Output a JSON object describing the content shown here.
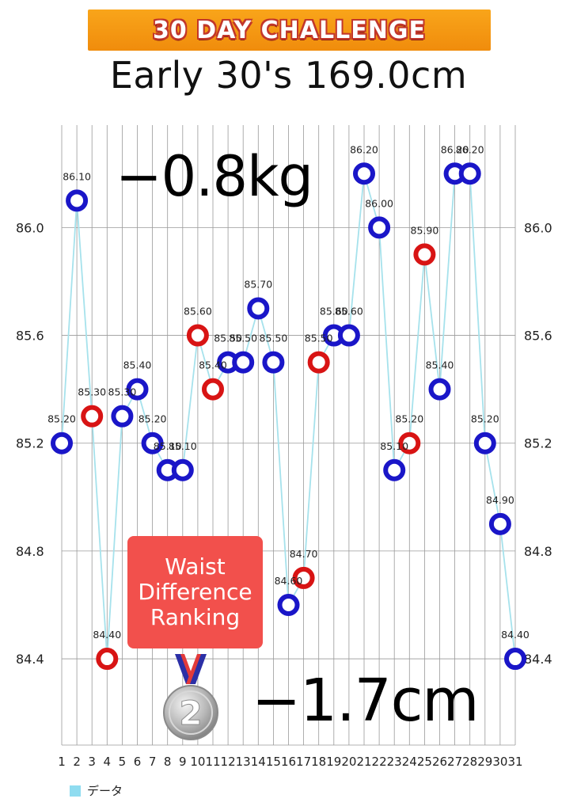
{
  "header": {
    "banner": "30 Day Challenge",
    "subtitle": "Early 30's  169.0cm"
  },
  "overlays": {
    "weight_change": "−0.8kg",
    "waist_change": "−1.7cm",
    "ranking_card": {
      "line1": "Waist",
      "line2": "Difference",
      "line3": "Ranking"
    },
    "medal_rank": "2"
  },
  "legend": {
    "label": "データ",
    "color": "#8fdcf0"
  },
  "colors": {
    "marker_blue": "#1a16c8",
    "marker_red": "#d81414",
    "line": "#a6e2ec",
    "grid": "#9a9a9a",
    "card": "#f2504c",
    "banner": "#f5981a"
  },
  "chart_data": {
    "type": "line",
    "x": [
      1,
      2,
      3,
      4,
      5,
      6,
      7,
      8,
      9,
      10,
      11,
      12,
      13,
      14,
      15,
      16,
      17,
      18,
      19,
      20,
      21,
      22,
      23,
      24,
      25,
      26,
      27,
      28,
      29,
      30,
      31
    ],
    "series": [
      {
        "values": [
          85.2,
          86.1,
          85.3,
          84.4,
          85.3,
          85.4,
          85.2,
          85.1,
          85.1,
          85.6,
          85.4,
          85.5,
          85.5,
          85.7,
          85.5,
          84.6,
          84.7,
          85.5,
          85.6,
          85.6,
          86.2,
          86.0,
          85.1,
          85.2,
          85.9,
          85.4,
          86.2,
          86.2,
          85.2,
          84.9,
          84.4
        ],
        "data_labels": [
          "85.20",
          "86.10",
          "85.30",
          "84.40",
          "85.30",
          "85.40",
          "85.20",
          "85.10",
          "85.10",
          "85.60",
          "85.40",
          "85.50",
          "85.50",
          "85.70",
          "85.50",
          "84.60",
          "84.70",
          "85.50",
          "85.60",
          "85.60",
          "86.20",
          "86.00",
          "85.10",
          "85.20",
          "85.90",
          "85.40",
          "86.20",
          "86.20",
          "85.20",
          "84.90",
          "84.40"
        ],
        "marker_colors": [
          "blue",
          "blue",
          "red",
          "red",
          "blue",
          "blue",
          "blue",
          "blue",
          "blue",
          "red",
          "red",
          "blue",
          "blue",
          "blue",
          "blue",
          "blue",
          "red",
          "red",
          "blue",
          "blue",
          "blue",
          "blue",
          "blue",
          "red",
          "red",
          "blue",
          "blue",
          "blue",
          "blue",
          "blue",
          "blue"
        ]
      }
    ],
    "y_ticks": [
      "84.4",
      "84.8",
      "85.2",
      "85.6",
      "86.0"
    ],
    "y_tick_values": [
      84.4,
      84.8,
      85.2,
      85.6,
      86.0
    ],
    "x_tick_labels": [
      "1",
      "2",
      "3",
      "4",
      "5",
      "6",
      "7",
      "8",
      "9",
      "10",
      "11",
      "12",
      "13",
      "14",
      "15",
      "16",
      "17",
      "18",
      "19",
      "20",
      "21",
      "22",
      "23",
      "24",
      "25",
      "26",
      "27",
      "28",
      "29",
      "30",
      "31"
    ],
    "ylim": [
      84.08,
      86.38
    ],
    "y_axis_both_sides": true,
    "grid": true,
    "legend_position": "bottom-left"
  }
}
